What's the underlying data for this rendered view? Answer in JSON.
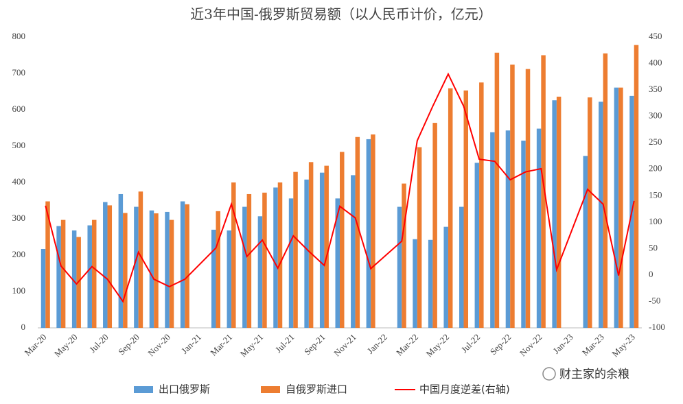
{
  "chart_data": {
    "type": "bar_line",
    "title": "近3年中国-俄罗斯贸易额（以人民币计价，亿元）",
    "categories": [
      "Mar-20",
      null,
      "May-20",
      null,
      "Jul-20",
      null,
      "Sep-20",
      null,
      "Nov-20",
      null,
      "Jan-21",
      null,
      "Mar-21",
      null,
      "May-21",
      null,
      "Jul-21",
      null,
      "Sep-21",
      null,
      "Nov-21",
      null,
      "Jan-22",
      null,
      "Mar-22",
      null,
      "May-22",
      null,
      "Jul-22",
      null,
      "Sep-22",
      null,
      "Nov-22",
      null,
      "Jan-23",
      null,
      "Mar-23",
      null,
      "May-23"
    ],
    "series": [
      {
        "name": "出口俄罗斯",
        "color": "#5b9bd5",
        "kind": "bar",
        "values": [
          217,
          280,
          268,
          282,
          346,
          368,
          333,
          323,
          319,
          348,
          null,
          270,
          268,
          333,
          307,
          386,
          356,
          408,
          427,
          356,
          420,
          519,
          null,
          333,
          244,
          242,
          278,
          333,
          454,
          538,
          543,
          515,
          548,
          626,
          null,
          473,
          622,
          661,
          638
        ]
      },
      {
        "name": "自俄罗斯进口",
        "color": "#ed7d31",
        "kind": "bar",
        "values": [
          348,
          297,
          250,
          297,
          337,
          316,
          375,
          315,
          297,
          340,
          null,
          321,
          400,
          368,
          372,
          400,
          429,
          456,
          446,
          484,
          525,
          532,
          null,
          397,
          497,
          564,
          659,
          653,
          675,
          757,
          724,
          712,
          750,
          636,
          null,
          634,
          755,
          661,
          778
        ]
      },
      {
        "name": "中国月度逆差(右轴)",
        "color": "#ff0000",
        "kind": "line",
        "axis": "y2",
        "values": [
          131,
          17,
          -17,
          16,
          -8,
          -50,
          43,
          -8,
          -22,
          -8,
          null,
          51,
          134,
          35,
          66,
          13,
          74,
          45,
          18,
          130,
          108,
          12,
          null,
          64,
          254,
          319,
          380,
          319,
          219,
          215,
          180,
          195,
          201,
          10,
          null,
          162,
          134,
          -1,
          140
        ]
      }
    ],
    "ylim": [
      0,
      800
    ],
    "yticks": [
      0,
      100,
      200,
      300,
      400,
      500,
      600,
      700,
      800
    ],
    "y2lim": [
      -100,
      450
    ],
    "y2ticks": [
      -100,
      -50,
      0,
      50,
      100,
      150,
      200,
      250,
      300,
      350,
      400,
      450
    ],
    "grid": false,
    "legend": "bottom",
    "watermark": "财主家的余粮"
  }
}
